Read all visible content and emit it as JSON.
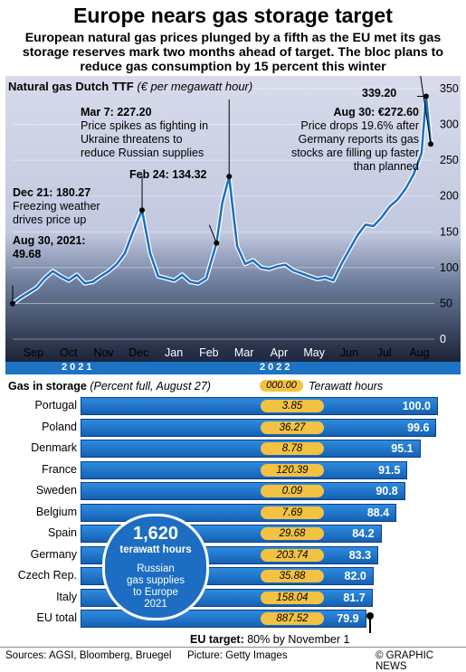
{
  "header": {
    "title": "Europe nears gas storage target",
    "subtitle": "European natural gas prices plunged by a fifth as the EU met its gas storage reserves mark two months ahead of target. The bloc plans to reduce gas consumption by 15 percent this winter"
  },
  "chart_data": [
    {
      "type": "line",
      "title": "Natural gas Dutch TTF",
      "unit": "(€ per megawatt hour)",
      "ylim": [
        0,
        350
      ],
      "yticks": [
        "0",
        "50",
        "100",
        "150",
        "200",
        "250",
        "300",
        "350"
      ],
      "months": [
        "Sep",
        "Oct",
        "Nov",
        "Dec",
        "Jan",
        "Feb",
        "Mar",
        "Apr",
        "May",
        "Jun",
        "Jul",
        "Aug"
      ],
      "years": [
        "2021",
        "2022"
      ],
      "x": [
        "2021-08-30",
        "2021-09-06",
        "2021-09-13",
        "2021-09-20",
        "2021-09-27",
        "2021-10-04",
        "2021-10-11",
        "2021-10-18",
        "2021-10-25",
        "2021-11-01",
        "2021-11-08",
        "2021-11-15",
        "2021-11-22",
        "2021-11-29",
        "2021-12-06",
        "2021-12-13",
        "2021-12-21",
        "2021-12-28",
        "2022-01-04",
        "2022-01-11",
        "2022-01-18",
        "2022-01-25",
        "2022-02-01",
        "2022-02-08",
        "2022-02-15",
        "2022-02-24",
        "2022-03-01",
        "2022-03-07",
        "2022-03-14",
        "2022-03-21",
        "2022-03-28",
        "2022-04-04",
        "2022-04-11",
        "2022-04-18",
        "2022-04-25",
        "2022-05-02",
        "2022-05-09",
        "2022-05-16",
        "2022-05-23",
        "2022-05-30",
        "2022-06-06",
        "2022-06-13",
        "2022-06-20",
        "2022-06-27",
        "2022-07-04",
        "2022-07-11",
        "2022-07-18",
        "2022-07-25",
        "2022-08-01",
        "2022-08-08",
        "2022-08-15",
        "2022-08-22",
        "2022-08-26",
        "2022-08-30"
      ],
      "series": [
        {
          "values": [
            49.68,
            58,
            65,
            72,
            85,
            95,
            88,
            82,
            90,
            78,
            80,
            88,
            95,
            105,
            120,
            150,
            180.27,
            120,
            88,
            85,
            82,
            90,
            80,
            78,
            85,
            134.32,
            190,
            227.2,
            130,
            105,
            110,
            100,
            98,
            102,
            104,
            96,
            92,
            88,
            84,
            86,
            82,
            105,
            125,
            145,
            160,
            158,
            170,
            185,
            195,
            210,
            230,
            260,
            339.2,
            272.6
          ]
        }
      ],
      "annotations": [
        {
          "date": "Aug 30, 2021:",
          "value": "49.68",
          "text": ""
        },
        {
          "date": "Dec 21:",
          "value": "180.27",
          "text": "Freezing weather drives price up"
        },
        {
          "date": "Mar 7:",
          "value": "227.20",
          "text": "Price spikes as fighting in Ukraine threatens to reduce Russian supplies"
        },
        {
          "date": "Feb 24:",
          "value": "134.32",
          "text": ""
        },
        {
          "date": "",
          "value": "339.20",
          "text": ""
        },
        {
          "date": "Aug 30:",
          "value": "€272.60",
          "text": "Price drops 19.6% after Germany reports its gas stocks are filling up faster than planned"
        }
      ]
    },
    {
      "type": "bar",
      "title": "Gas in storage",
      "unit": "(Percent full, August 27)",
      "xlim": [
        0,
        100
      ],
      "categories": [
        "Portugal",
        "Poland",
        "Denmark",
        "France",
        "Sweden",
        "Belgium",
        "Spain",
        "Germany",
        "Czech Rep.",
        "Italy",
        "EU total"
      ],
      "values": [
        100.0,
        99.6,
        95.1,
        91.5,
        90.8,
        88.4,
        84.2,
        83.3,
        82.0,
        81.7,
        79.9
      ],
      "labels": [
        "100.0",
        "99.6",
        "95.1",
        "91.5",
        "90.8",
        "88.4",
        "84.2",
        "83.3",
        "82.0",
        "81.7",
        "79.9"
      ],
      "twh": [
        "3.85",
        "36.27",
        "8.78",
        "120.39",
        "0.09",
        "7.69",
        "29.68",
        "203.74",
        "35.88",
        "158.04",
        "887.52"
      ],
      "twh_legend_sample": "000.00",
      "twh_legend_label": "Terawatt hours",
      "target_value": 80,
      "target_label_bold": "EU target:",
      "target_label": "80% by November 1"
    }
  ],
  "callout": {
    "big": "1,620",
    "unit": "terawatt hours",
    "line1": "Russian",
    "line2": "gas supplies",
    "line3": "to Europe",
    "line4": "2021"
  },
  "footer": {
    "sources": "Sources: AGSI, Bloomberg, Bruegel",
    "picture": "Picture: Getty Images",
    "credit": "© GRAPHIC NEWS"
  },
  "colors": {
    "bar": "#1e72c4",
    "pill": "#f3c242",
    "line": "#1d6ec2",
    "panel": "#c9cee2"
  }
}
